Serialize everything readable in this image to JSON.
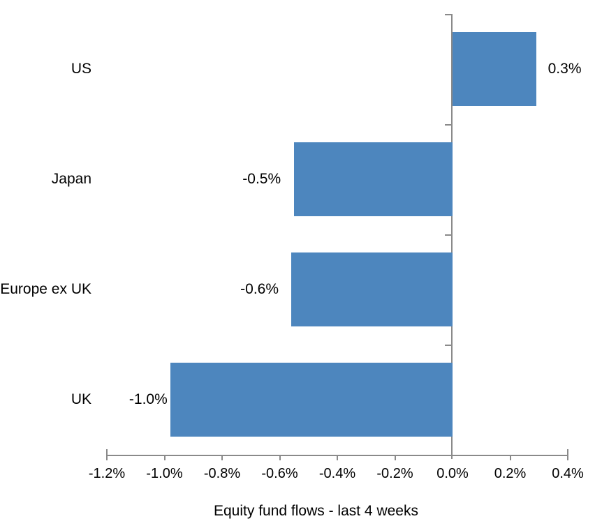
{
  "chart_data": {
    "type": "bar",
    "orientation": "horizontal",
    "title": "",
    "xlabel": "",
    "ylabel": "",
    "categories": [
      "US",
      "Japan",
      "Europe ex UK",
      "UK"
    ],
    "series": [
      {
        "name": "Equity fund flows - last 4 weeks",
        "values": [
          0.3,
          -0.5,
          -0.6,
          -1.0
        ],
        "value_labels": [
          "0.3%",
          "-0.5%",
          "-0.6%",
          "-1.0%"
        ],
        "bar_extents_pct_est": [
          0.29,
          -0.55,
          -0.56,
          -0.98
        ]
      }
    ],
    "xlim": [
      -1.2,
      0.4
    ],
    "x_tick_values": [
      -1.2,
      -1.0,
      -0.8,
      -0.6,
      -0.4,
      -0.2,
      0.0,
      0.2,
      0.4
    ],
    "x_tick_labels": [
      "-1.2%",
      "-1.0%",
      "-0.8%",
      "-0.6%",
      "-0.4%",
      "-0.2%",
      "0.0%",
      "0.2%",
      "0.4%"
    ],
    "grid": "off",
    "legend_position": "bottom",
    "bar_color": "#4D86BE",
    "axis_color": "#8A8A8A",
    "text_color": "#000000"
  },
  "legend": {
    "label": "Equity fund flows - last 4 weeks",
    "swatch_color": "#4D86BE"
  }
}
